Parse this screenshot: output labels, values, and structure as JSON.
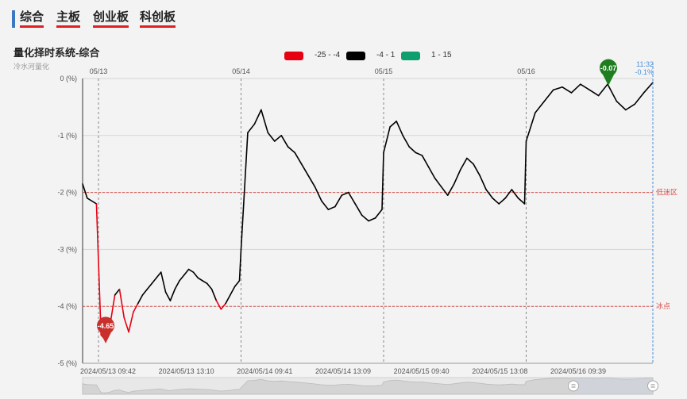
{
  "tabs": [
    {
      "label": "综合"
    },
    {
      "label": "主板"
    },
    {
      "label": "创业板"
    },
    {
      "label": "科创板"
    }
  ],
  "title": "量化择时系统-综合",
  "subtitle": "冷水河量化",
  "legend": [
    {
      "label": "-25 - -4",
      "color": "#e60012"
    },
    {
      "label": "-4 - 1",
      "color": "#000000"
    },
    {
      "label": "1 - 15",
      "color": "#0e9f6e"
    }
  ],
  "colors": {
    "grid": "#d5d5d5",
    "ref_line": "#d9534f",
    "day_divider": "#888888",
    "cursor": "#4a90d9",
    "min_marker": "#c9302c",
    "last_marker": "#1e7d1e"
  },
  "chart_data": {
    "type": "line",
    "title": "量化择时系统-综合",
    "ylim": [
      -5,
      0
    ],
    "yticks": [
      "0 (%)",
      "-1 (%)",
      "-2 (%)",
      "-3 (%)",
      "-4 (%)",
      "-5 (%)"
    ],
    "day_labels": [
      "05/13",
      "05/14",
      "05/15",
      "05/16"
    ],
    "xticks": [
      "2024/05/13 09:42",
      "2024/05/13 13:10",
      "2024/05/14 09:41",
      "2024/05/14 13:09",
      "2024/05/15 09:40",
      "2024/05/15 13:08",
      "2024/05/16 09:39"
    ],
    "reference_lines": [
      {
        "value": -2,
        "label": "低迷区"
      },
      {
        "value": -4,
        "label": "冰点"
      }
    ],
    "color_bands": [
      {
        "range": [
          -25,
          -4
        ],
        "color": "#e60012"
      },
      {
        "range": [
          -4,
          1
        ],
        "color": "#000000"
      },
      {
        "range": [
          1,
          15
        ],
        "color": "#0e9f6e"
      }
    ],
    "series": [
      {
        "sessions": [
          {
            "day": "05/13",
            "values": [
              -1.85,
              -2.1,
              -2.15,
              -2.2,
              -4.5,
              -4.6,
              -4.3,
              -3.8,
              -3.7,
              -4.2,
              -4.45,
              -4.1,
              -3.95,
              -3.8,
              -3.7,
              -3.6,
              -3.5,
              -3.4,
              -3.75,
              -3.9,
              -3.7,
              -3.55,
              -3.45,
              -3.35,
              -3.4,
              -3.5,
              -3.55,
              -3.6,
              -3.7,
              -3.9,
              -4.05,
              -3.95,
              -3.8,
              -3.65,
              -3.55
            ]
          },
          {
            "day": "05/14",
            "values": [
              -3.0,
              -0.95,
              -0.8,
              -0.55,
              -0.95,
              -1.1,
              -1.0,
              -1.2,
              -1.3,
              -1.5,
              -1.7,
              -1.9,
              -2.15,
              -2.3,
              -2.25,
              -2.05,
              -2.0,
              -2.2,
              -2.4,
              -2.5,
              -2.45,
              -2.3
            ]
          },
          {
            "day": "05/15",
            "values": [
              -1.3,
              -0.85,
              -0.75,
              -1.0,
              -1.2,
              -1.3,
              -1.35,
              -1.55,
              -1.75,
              -1.9,
              -2.05,
              -1.85,
              -1.6,
              -1.4,
              -1.5,
              -1.7,
              -1.95,
              -2.1,
              -2.2,
              -2.1,
              -1.95,
              -2.1,
              -2.2
            ]
          },
          {
            "day": "05/16",
            "values": [
              -1.1,
              -0.6,
              -0.4,
              -0.2,
              -0.15,
              -0.25,
              -0.1,
              -0.2,
              -0.3,
              -0.1,
              -0.4,
              -0.55,
              -0.45,
              -0.25,
              -0.07
            ]
          }
        ]
      }
    ],
    "min_point": {
      "value": -4.65,
      "label": "-4.65"
    },
    "last_point": {
      "value": -0.07,
      "label": "-0.07"
    },
    "cursor_readout": {
      "time": "11:32",
      "value": "-0.1%"
    }
  }
}
